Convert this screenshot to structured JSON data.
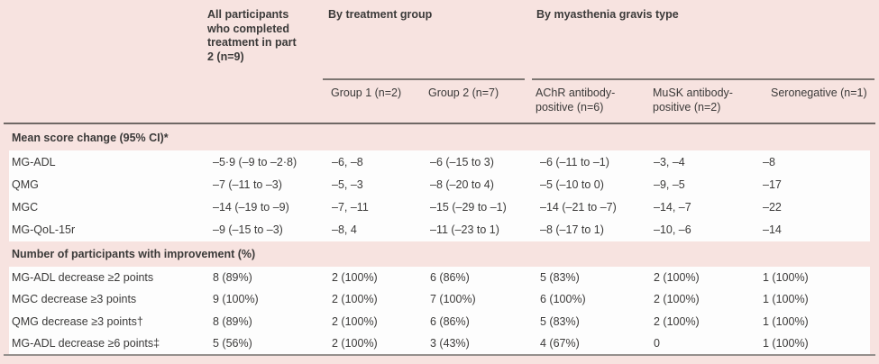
{
  "table": {
    "header": {
      "all_participants": "All participants who completed treatment in part 2 (n=9)",
      "group_treatment": "By treatment group",
      "group_mg_type": "By myasthenia gravis type",
      "sub_columns": [
        "Group 1 (n=2)",
        "Group 2 (n=7)",
        "AChR antibody-positive (n=6)",
        "MuSK antibody-positive (n=2)",
        "Seronegative (n=1)"
      ]
    },
    "sections": [
      {
        "title": "Mean score change (95% CI)*",
        "rows": [
          {
            "label": "MG-ADL",
            "values": [
              "–5·9 (–9 to –2·8)",
              "–6, –8",
              "–6 (–15 to 3)",
              "–6 (–11 to –1)",
              "–3, –4",
              "–8"
            ]
          },
          {
            "label": "QMG",
            "values": [
              "–7 (–11 to –3)",
              "–5, –3",
              "–8 (–20 to 4)",
              "–5 (–10 to 0)",
              "–9, –5",
              "–17"
            ]
          },
          {
            "label": "MGC",
            "values": [
              "–14 (–19 to –9)",
              "–7, –11",
              "–15 (–29 to –1)",
              "–14 (–21 to –7)",
              "–14, –7",
              "–22"
            ]
          },
          {
            "label": "MG-QoL-15r",
            "values": [
              "–9 (–15 to –3)",
              "–8, 4",
              "–11 (–23 to 1)",
              "–8 (–17 to 1)",
              "–10, –6",
              "–14"
            ]
          }
        ]
      },
      {
        "title": "Number of participants with improvement (%)",
        "rows": [
          {
            "label": "MG-ADL decrease ≥2 points",
            "values": [
              "8 (89%)",
              "2 (100%)",
              "6 (86%)",
              "5 (83%)",
              "2 (100%)",
              "1 (100%)"
            ]
          },
          {
            "label": "MGC decrease ≥3 points",
            "values": [
              "9 (100%)",
              "2 (100%)",
              "7 (100%)",
              "6 (100%)",
              "2 (100%)",
              "1 (100%)"
            ]
          },
          {
            "label": "QMG decrease ≥3 points†",
            "values": [
              "8 (89%)",
              "2 (100%)",
              "6 (86%)",
              "5 (83%)",
              "2 (100%)",
              "1 (100%)"
            ]
          },
          {
            "label": "MG-ADL decrease ≥6 points‡",
            "values": [
              "5 (56%)",
              "2 (100%)",
              "3 (43%)",
              "4 (67%)",
              "0",
              "1 (100%)"
            ]
          }
        ]
      }
    ],
    "colors": {
      "background_pink": "#f7e3e0",
      "row_white": "#fdfdfd",
      "text": "#3b3a39",
      "rule_dark": "#6f6865",
      "rule_bottom": "#95908d"
    }
  }
}
